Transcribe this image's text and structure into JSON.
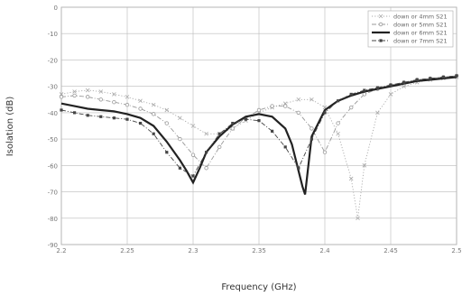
{
  "chart_data": {
    "type": "line",
    "xlabel": "Frequency (GHz)",
    "ylabel": "Isolation (dB)",
    "xlim": [
      2.2,
      2.5
    ],
    "ylim": [
      -90,
      0
    ],
    "xticks": [
      2.2,
      2.25,
      2.3,
      2.35,
      2.4,
      2.45,
      2.5
    ],
    "xtick_labels": [
      "2.2",
      "2.25",
      "2.3",
      "2.35",
      "2.4",
      "2.45",
      "2.5"
    ],
    "yticks": [
      0,
      -10,
      -20,
      -30,
      -40,
      -50,
      -60,
      -70,
      -80,
      -90
    ],
    "ytick_labels": [
      "0",
      "-10",
      "-20",
      "-30",
      "-40",
      "-50",
      "-60",
      "-70",
      "-80",
      "-90"
    ],
    "grid": true,
    "legend_position": "top-right",
    "series": [
      {
        "name": "down or 4mm S21",
        "color": "#aaaaaa",
        "style": "dotted",
        "marker": "cross",
        "x": [
          2.2,
          2.21,
          2.22,
          2.23,
          2.24,
          2.25,
          2.26,
          2.27,
          2.28,
          2.29,
          2.3,
          2.31,
          2.32,
          2.33,
          2.34,
          2.35,
          2.36,
          2.37,
          2.38,
          2.39,
          2.4,
          2.41,
          2.42,
          2.425,
          2.43,
          2.44,
          2.45,
          2.46,
          2.47,
          2.48,
          2.49,
          2.5
        ],
        "y": [
          -33,
          -32,
          -31.5,
          -32,
          -33,
          -34,
          -35.5,
          -37,
          -39,
          -42,
          -45,
          -48,
          -48,
          -46,
          -43,
          -40,
          -38,
          -36.5,
          -35,
          -35,
          -38,
          -48,
          -65,
          -80,
          -60,
          -40,
          -33,
          -30,
          -28.5,
          -27.5,
          -27,
          -26.5
        ]
      },
      {
        "name": "down or 5mm S21",
        "color": "#999999",
        "style": "dashdot",
        "marker": "circle",
        "x": [
          2.2,
          2.21,
          2.22,
          2.23,
          2.24,
          2.25,
          2.26,
          2.27,
          2.28,
          2.29,
          2.3,
          2.31,
          2.32,
          2.33,
          2.34,
          2.35,
          2.36,
          2.37,
          2.38,
          2.39,
          2.4,
          2.41,
          2.42,
          2.43,
          2.44,
          2.45,
          2.46,
          2.47,
          2.48,
          2.49,
          2.5
        ],
        "y": [
          -34,
          -33.5,
          -34,
          -35,
          -36,
          -37,
          -38.5,
          -40.5,
          -44,
          -50,
          -56,
          -61,
          -53,
          -46,
          -42,
          -39,
          -37.5,
          -37.5,
          -40,
          -46,
          -55,
          -44,
          -38,
          -33,
          -31,
          -29.5,
          -28.5,
          -27.5,
          -27,
          -26.5,
          -26
        ]
      },
      {
        "name": "down or 6mm S21",
        "color": "#222222",
        "style": "solid",
        "marker": "none",
        "x": [
          2.2,
          2.21,
          2.22,
          2.23,
          2.24,
          2.25,
          2.26,
          2.27,
          2.28,
          2.29,
          2.295,
          2.3,
          2.305,
          2.31,
          2.32,
          2.33,
          2.34,
          2.35,
          2.36,
          2.37,
          2.375,
          2.38,
          2.383,
          2.385,
          2.39,
          2.4,
          2.41,
          2.42,
          2.43,
          2.44,
          2.45,
          2.46,
          2.47,
          2.48,
          2.49,
          2.5
        ],
        "y": [
          -36.5,
          -37.5,
          -38.5,
          -39,
          -39.5,
          -40.5,
          -42,
          -45,
          -51,
          -58,
          -62,
          -66.5,
          -61,
          -55,
          -49,
          -44.5,
          -41.5,
          -40.5,
          -41.5,
          -46,
          -52,
          -62,
          -68,
          -71,
          -49,
          -39,
          -35.5,
          -33.5,
          -32,
          -31,
          -30,
          -29,
          -28,
          -27.5,
          -27,
          -26.5
        ]
      },
      {
        "name": "down or 7mm S21",
        "color": "#444444",
        "style": "dashdot",
        "marker": "square",
        "x": [
          2.2,
          2.21,
          2.22,
          2.23,
          2.24,
          2.25,
          2.26,
          2.27,
          2.28,
          2.29,
          2.3,
          2.31,
          2.32,
          2.33,
          2.34,
          2.35,
          2.36,
          2.37,
          2.38,
          2.39,
          2.4,
          2.41,
          2.42,
          2.43,
          2.44,
          2.45,
          2.46,
          2.47,
          2.48,
          2.49,
          2.5
        ],
        "y": [
          -39,
          -40,
          -41,
          -41.5,
          -42,
          -42.5,
          -44,
          -48,
          -55,
          -61,
          -64,
          -55,
          -48,
          -44,
          -42.5,
          -43,
          -47,
          -53,
          -61,
          -50,
          -40,
          -35.5,
          -33,
          -31.5,
          -30.5,
          -29.5,
          -28.5,
          -27.5,
          -27,
          -26.5,
          -26
        ]
      }
    ]
  }
}
